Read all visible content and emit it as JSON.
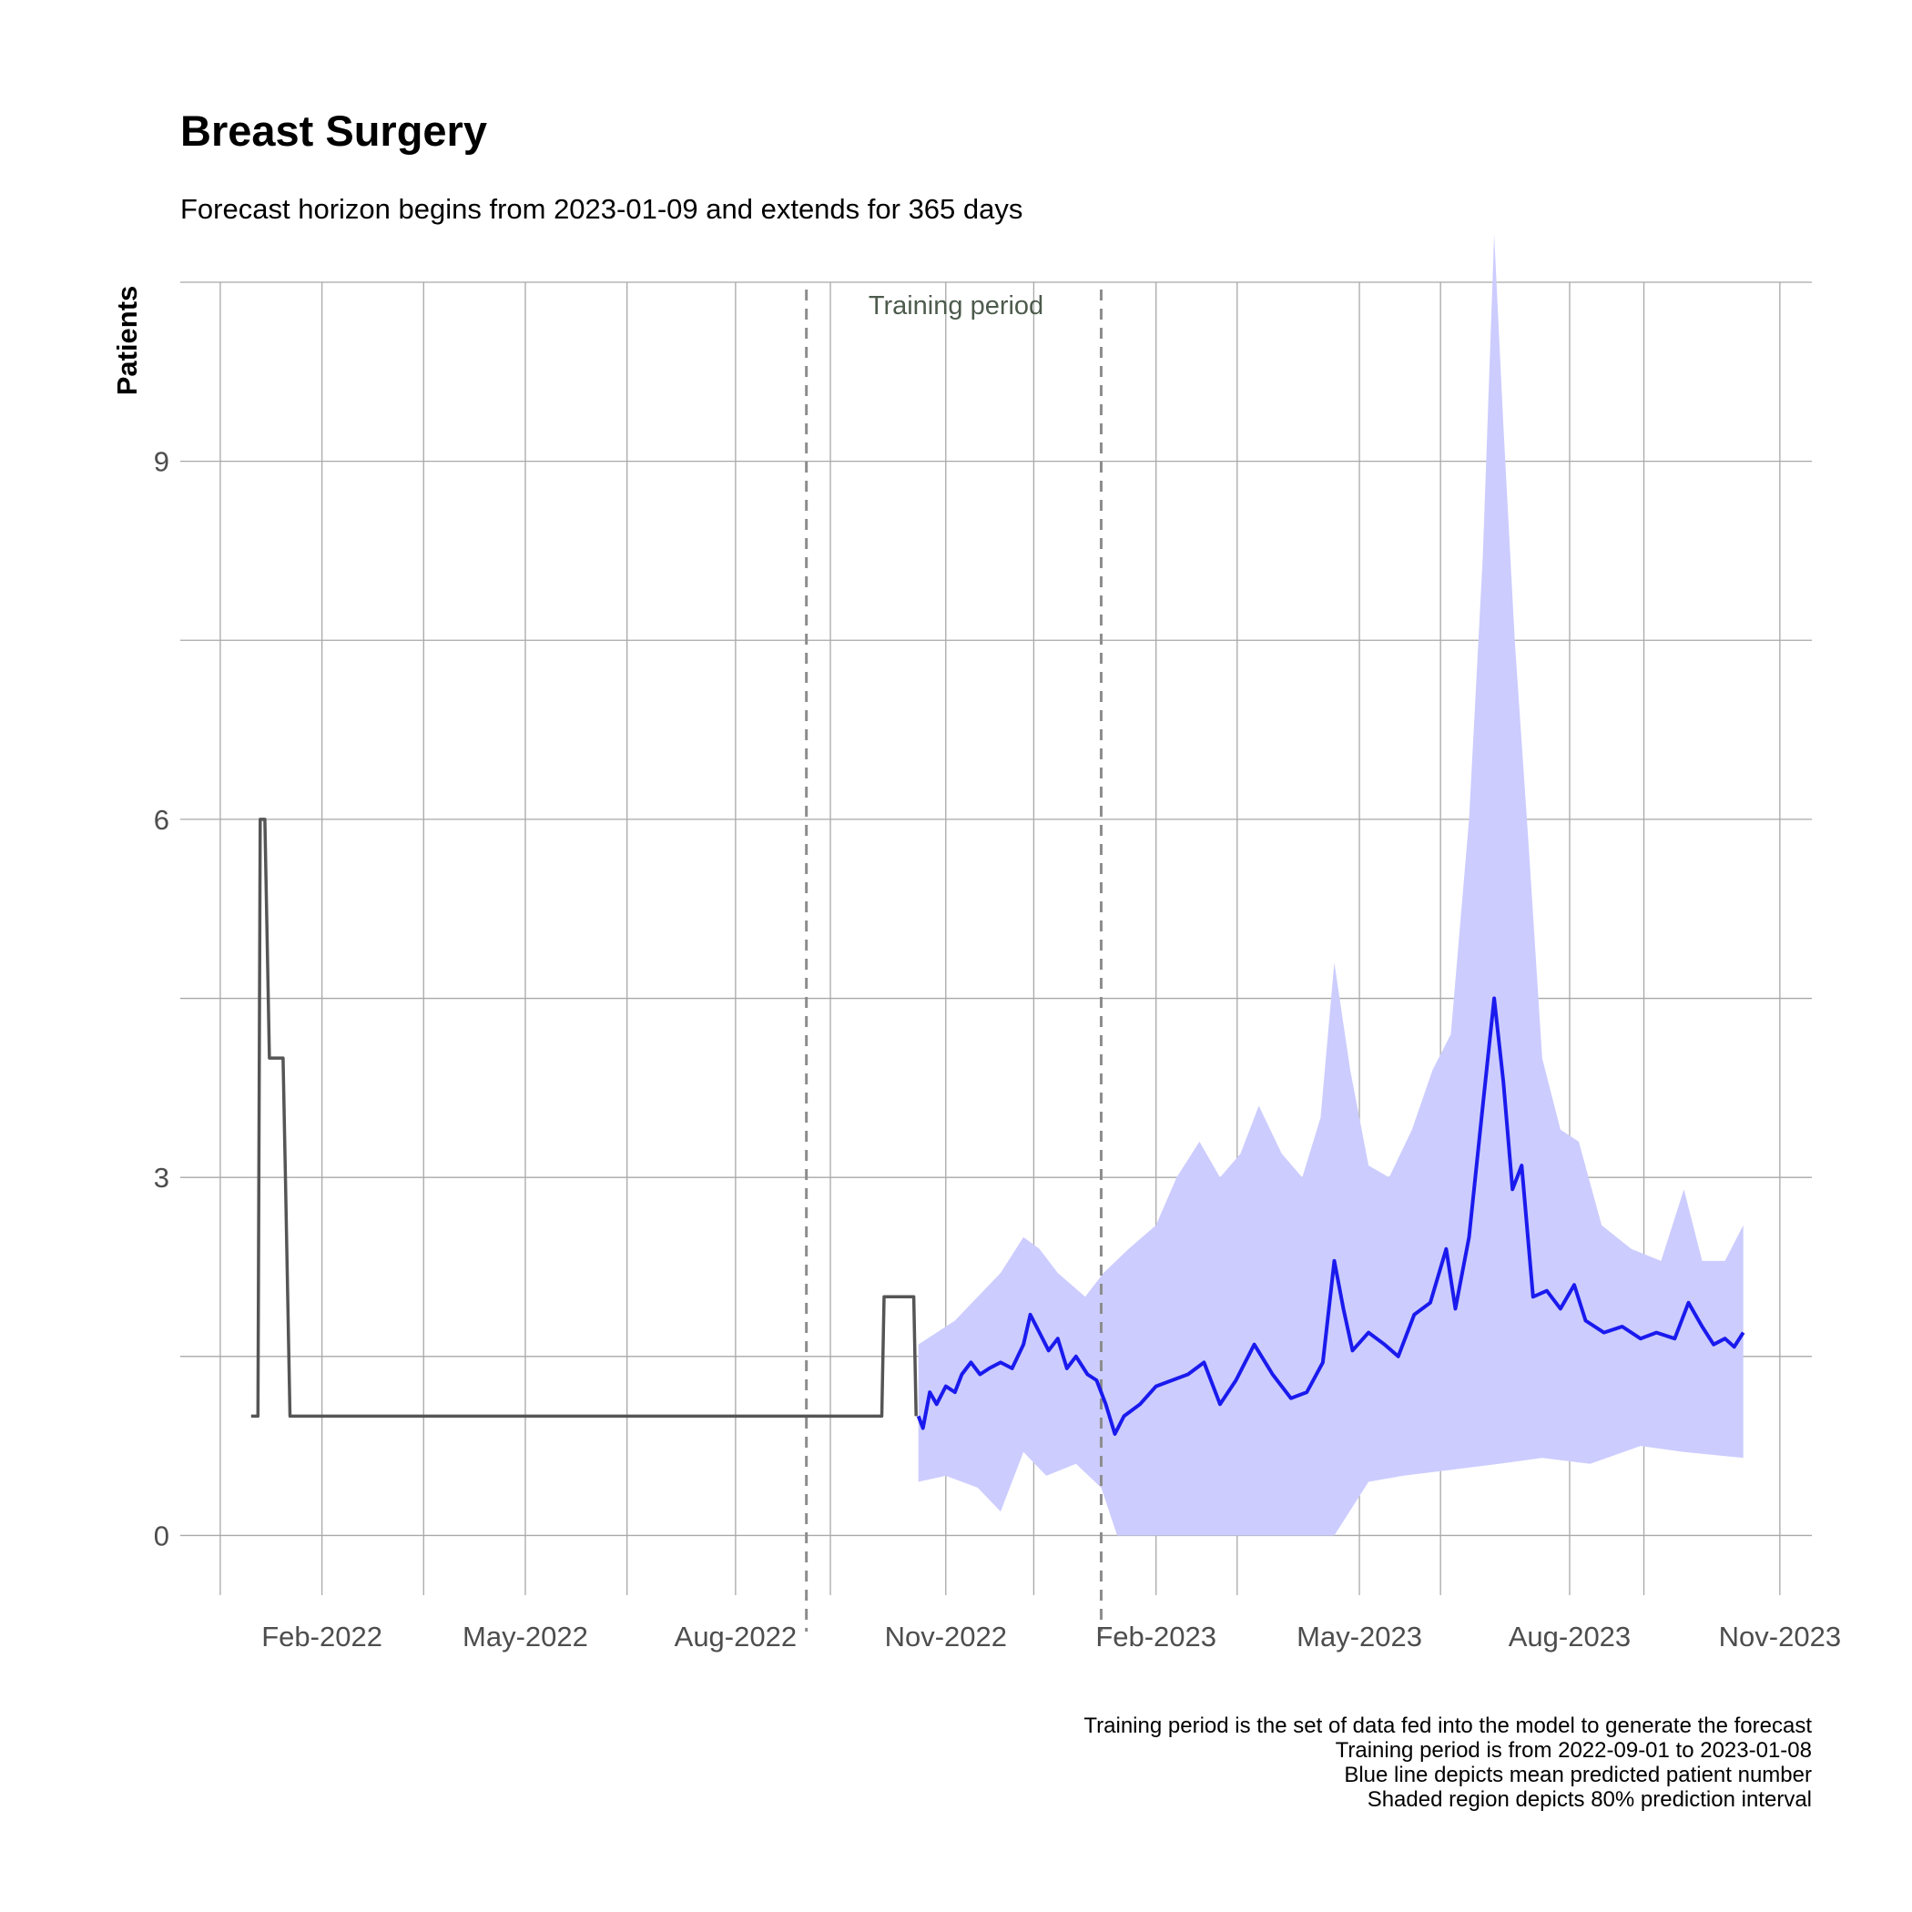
{
  "chart_data": {
    "type": "line",
    "title": "Breast Surgery",
    "subtitle": "Forecast horizon begins from 2023-01-09 and extends for 365 days",
    "ylabel": "Patients",
    "xlabel": "",
    "x_type": "date",
    "xlim": [
      "2021-12-01",
      "2023-11-15"
    ],
    "ylim": [
      -0.5,
      10.5
    ],
    "x_ticks": [
      "2022-02-01",
      "2022-05-01",
      "2022-08-01",
      "2022-11-01",
      "2023-02-01",
      "2023-05-01",
      "2023-08-01",
      "2023-11-01"
    ],
    "x_tick_labels": [
      "Feb-2022",
      "May-2022",
      "Aug-2022",
      "Nov-2022",
      "Feb-2023",
      "May-2023",
      "Aug-2023",
      "Nov-2023"
    ],
    "y_ticks": [
      0,
      3,
      6,
      9
    ],
    "y_tick_labels": [
      "0",
      "3",
      "6",
      "9"
    ],
    "grid": true,
    "annotations": {
      "training_label": "Training period",
      "training_start": "2022-09-01",
      "training_end": "2023-01-08",
      "caption_lines": [
        "Training period is the set of data fed into the model to generate the forecast",
        "Training period is from 2022-09-01 to 2023-01-08",
        "Blue line depicts mean predicted patient number",
        "Shaded region depicts 80% prediction interval"
      ]
    },
    "series": [
      {
        "style": "step",
        "color": "#555555",
        "points": [
          [
            "2022-01-01",
            1
          ],
          [
            "2022-01-04",
            1
          ],
          [
            "2022-01-05",
            6
          ],
          [
            "2022-01-07",
            6
          ],
          [
            "2022-01-09",
            4
          ],
          [
            "2022-01-15",
            4
          ],
          [
            "2022-01-16",
            3
          ],
          [
            "2022-01-18",
            1
          ],
          [
            "2022-10-04",
            1
          ],
          [
            "2022-10-05",
            2
          ],
          [
            "2022-10-18",
            2
          ],
          [
            "2022-10-19",
            1
          ]
        ]
      },
      {
        "style": "line",
        "color": "#1a1aee",
        "points": [
          [
            "2022-10-20",
            1.0
          ],
          [
            "2022-10-22",
            0.9
          ],
          [
            "2022-10-25",
            1.2
          ],
          [
            "2022-10-28",
            1.1
          ],
          [
            "2022-11-01",
            1.25
          ],
          [
            "2022-11-05",
            1.2
          ],
          [
            "2022-11-08",
            1.35
          ],
          [
            "2022-11-12",
            1.45
          ],
          [
            "2022-11-16",
            1.35
          ],
          [
            "2022-11-20",
            1.4
          ],
          [
            "2022-11-25",
            1.45
          ],
          [
            "2022-11-30",
            1.4
          ],
          [
            "2022-12-05",
            1.6
          ],
          [
            "2022-12-08",
            1.85
          ],
          [
            "2022-12-12",
            1.7
          ],
          [
            "2022-12-16",
            1.55
          ],
          [
            "2022-12-20",
            1.65
          ],
          [
            "2022-12-24",
            1.4
          ],
          [
            "2022-12-28",
            1.5
          ],
          [
            "2023-01-02",
            1.35
          ],
          [
            "2023-01-06",
            1.3
          ],
          [
            "2023-01-10",
            1.1
          ],
          [
            "2023-01-14",
            0.85
          ],
          [
            "2023-01-18",
            1.0
          ],
          [
            "2023-01-25",
            1.1
          ],
          [
            "2023-02-01",
            1.25
          ],
          [
            "2023-02-08",
            1.3
          ],
          [
            "2023-02-15",
            1.35
          ],
          [
            "2023-02-22",
            1.45
          ],
          [
            "2023-03-01",
            1.1
          ],
          [
            "2023-03-08",
            1.3
          ],
          [
            "2023-03-16",
            1.6
          ],
          [
            "2023-03-24",
            1.35
          ],
          [
            "2023-04-01",
            1.15
          ],
          [
            "2023-04-08",
            1.2
          ],
          [
            "2023-04-15",
            1.45
          ],
          [
            "2023-04-20",
            2.3
          ],
          [
            "2023-04-24",
            1.9
          ],
          [
            "2023-04-28",
            1.55
          ],
          [
            "2023-05-05",
            1.7
          ],
          [
            "2023-05-12",
            1.6
          ],
          [
            "2023-05-18",
            1.5
          ],
          [
            "2023-05-25",
            1.85
          ],
          [
            "2023-06-01",
            1.95
          ],
          [
            "2023-06-08",
            2.4
          ],
          [
            "2023-06-12",
            1.9
          ],
          [
            "2023-06-18",
            2.5
          ],
          [
            "2023-06-24",
            3.6
          ],
          [
            "2023-06-29",
            4.5
          ],
          [
            "2023-07-03",
            3.8
          ],
          [
            "2023-07-07",
            2.9
          ],
          [
            "2023-07-11",
            3.1
          ],
          [
            "2023-07-16",
            2.0
          ],
          [
            "2023-07-22",
            2.05
          ],
          [
            "2023-07-28",
            1.9
          ],
          [
            "2023-08-03",
            2.1
          ],
          [
            "2023-08-08",
            1.8
          ],
          [
            "2023-08-16",
            1.7
          ],
          [
            "2023-08-24",
            1.75
          ],
          [
            "2023-09-01",
            1.65
          ],
          [
            "2023-09-08",
            1.7
          ],
          [
            "2023-09-16",
            1.65
          ],
          [
            "2023-09-22",
            1.95
          ],
          [
            "2023-09-28",
            1.75
          ],
          [
            "2023-10-03",
            1.6
          ],
          [
            "2023-10-08",
            1.65
          ],
          [
            "2023-10-12",
            1.58
          ],
          [
            "2023-10-16",
            1.7
          ]
        ]
      }
    ],
    "interval": {
      "label": "80% prediction interval",
      "color": "#ccccff",
      "upper": [
        [
          "2022-10-20",
          1.6
        ],
        [
          "2022-10-28",
          1.7
        ],
        [
          "2022-11-05",
          1.8
        ],
        [
          "2022-11-15",
          2.0
        ],
        [
          "2022-11-25",
          2.2
        ],
        [
          "2022-12-05",
          2.5
        ],
        [
          "2022-12-12",
          2.4
        ],
        [
          "2022-12-20",
          2.2
        ],
        [
          "2023-01-01",
          2.0
        ],
        [
          "2023-01-09",
          2.2
        ],
        [
          "2023-01-20",
          2.4
        ],
        [
          "2023-02-01",
          2.6
        ],
        [
          "2023-02-10",
          3.0
        ],
        [
          "2023-02-20",
          3.3
        ],
        [
          "2023-03-01",
          3.0
        ],
        [
          "2023-03-10",
          3.2
        ],
        [
          "2023-03-18",
          3.6
        ],
        [
          "2023-03-28",
          3.2
        ],
        [
          "2023-04-06",
          3.0
        ],
        [
          "2023-04-14",
          3.5
        ],
        [
          "2023-04-20",
          4.8
        ],
        [
          "2023-04-27",
          3.9
        ],
        [
          "2023-05-05",
          3.1
        ],
        [
          "2023-05-14",
          3.0
        ],
        [
          "2023-05-24",
          3.4
        ],
        [
          "2023-06-02",
          3.9
        ],
        [
          "2023-06-10",
          4.2
        ],
        [
          "2023-06-18",
          6.0
        ],
        [
          "2023-06-24",
          8.2
        ],
        [
          "2023-06-29",
          10.9
        ],
        [
          "2023-07-03",
          9.3
        ],
        [
          "2023-07-08",
          7.5
        ],
        [
          "2023-07-14",
          5.8
        ],
        [
          "2023-07-20",
          4.0
        ],
        [
          "2023-07-28",
          3.4
        ],
        [
          "2023-08-05",
          3.3
        ],
        [
          "2023-08-15",
          2.6
        ],
        [
          "2023-08-28",
          2.4
        ],
        [
          "2023-09-10",
          2.3
        ],
        [
          "2023-09-20",
          2.9
        ],
        [
          "2023-09-28",
          2.3
        ],
        [
          "2023-10-08",
          2.3
        ],
        [
          "2023-10-16",
          2.6
        ]
      ],
      "lower": [
        [
          "2022-10-20",
          0.45
        ],
        [
          "2022-11-01",
          0.5
        ],
        [
          "2022-11-15",
          0.4
        ],
        [
          "2022-11-25",
          0.2
        ],
        [
          "2022-12-05",
          0.7
        ],
        [
          "2022-12-15",
          0.5
        ],
        [
          "2022-12-28",
          0.6
        ],
        [
          "2023-01-08",
          0.4
        ],
        [
          "2023-01-15",
          0.0
        ],
        [
          "2023-02-15",
          0.0
        ],
        [
          "2023-04-01",
          0.0
        ],
        [
          "2023-04-20",
          0.0
        ],
        [
          "2023-05-05",
          0.45
        ],
        [
          "2023-05-20",
          0.5
        ],
        [
          "2023-06-10",
          0.55
        ],
        [
          "2023-07-01",
          0.6
        ],
        [
          "2023-07-20",
          0.65
        ],
        [
          "2023-08-10",
          0.6
        ],
        [
          "2023-09-01",
          0.75
        ],
        [
          "2023-09-20",
          0.7
        ],
        [
          "2023-10-16",
          0.65
        ]
      ]
    }
  }
}
